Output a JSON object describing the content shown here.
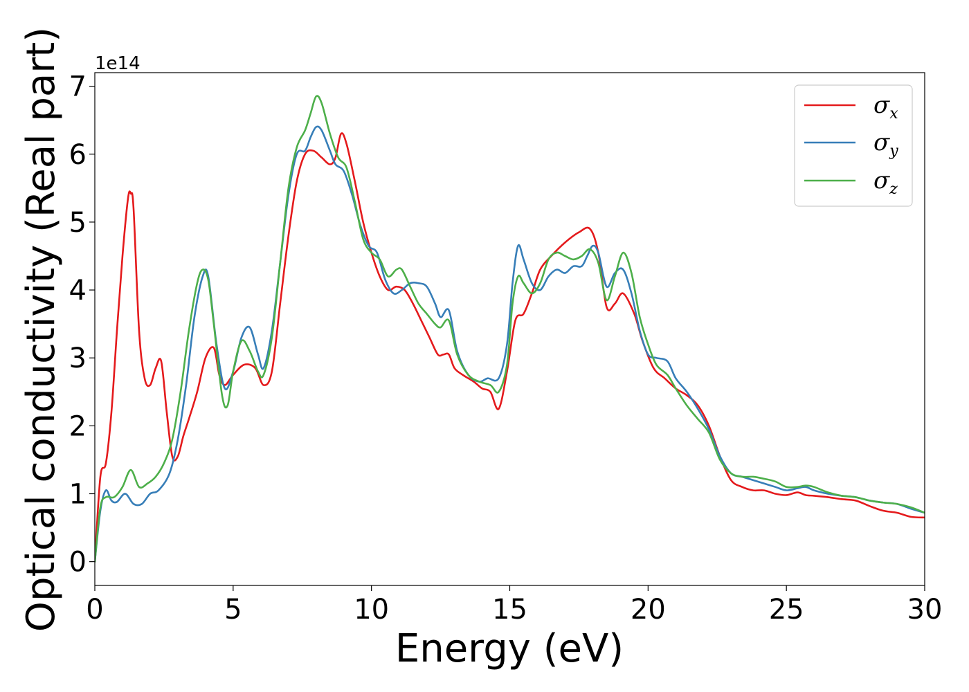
{
  "chart_data": {
    "type": "line",
    "xlabel": "Energy (eV)",
    "ylabel": "Optical conductivity (Real part)",
    "y_offset_label": "1e14",
    "xlim": [
      0,
      30
    ],
    "ylim": [
      -0.35,
      7.2
    ],
    "x_ticks": [
      0,
      5,
      10,
      15,
      20,
      25,
      30
    ],
    "y_ticks": [
      0,
      1,
      2,
      3,
      4,
      5,
      6,
      7
    ],
    "grid": false,
    "legend_position": "top-right",
    "series": [
      {
        "name": "σ",
        "subscript": "x",
        "color": "#e41a1c",
        "x": [
          0,
          0.2,
          0.4,
          0.6,
          0.8,
          1.0,
          1.2,
          1.3,
          1.4,
          1.6,
          1.8,
          2.0,
          2.2,
          2.4,
          2.6,
          2.8,
          3.0,
          3.2,
          3.4,
          3.7,
          4.0,
          4.3,
          4.5,
          4.7,
          5.0,
          5.4,
          5.8,
          6.1,
          6.4,
          6.7,
          7.0,
          7.3,
          7.6,
          7.9,
          8.2,
          8.5,
          8.7,
          8.9,
          9.1,
          9.4,
          9.7,
          10.0,
          10.3,
          10.6,
          10.9,
          11.2,
          11.5,
          11.8,
          12.1,
          12.4,
          12.6,
          12.8,
          13.0,
          13.3,
          13.7,
          14.0,
          14.3,
          14.6,
          14.9,
          15.2,
          15.5,
          15.8,
          16.1,
          16.5,
          17.0,
          17.5,
          17.9,
          18.2,
          18.5,
          18.8,
          19.1,
          19.5,
          19.8,
          20.2,
          20.6,
          21.0,
          21.4,
          21.8,
          22.2,
          22.6,
          23.0,
          23.4,
          23.8,
          24.2,
          24.6,
          25.0,
          25.4,
          25.7,
          26.0,
          26.5,
          27.0,
          27.5,
          28.0,
          28.5,
          29.0,
          29.5,
          30.0
        ],
        "values": [
          0,
          1.25,
          1.45,
          2.2,
          3.4,
          4.5,
          5.35,
          5.42,
          5.2,
          3.4,
          2.7,
          2.6,
          2.85,
          2.95,
          2.2,
          1.55,
          1.55,
          1.85,
          2.1,
          2.5,
          3.0,
          3.15,
          2.75,
          2.6,
          2.75,
          2.9,
          2.85,
          2.6,
          2.8,
          3.8,
          4.8,
          5.6,
          6.0,
          6.05,
          5.95,
          5.85,
          5.95,
          6.3,
          6.15,
          5.6,
          5.0,
          4.55,
          4.2,
          4.0,
          4.05,
          4.0,
          3.8,
          3.55,
          3.3,
          3.05,
          3.05,
          3.05,
          2.85,
          2.75,
          2.65,
          2.55,
          2.5,
          2.25,
          2.8,
          3.55,
          3.65,
          3.95,
          4.3,
          4.5,
          4.7,
          4.85,
          4.9,
          4.55,
          3.75,
          3.8,
          3.95,
          3.65,
          3.25,
          2.85,
          2.7,
          2.55,
          2.45,
          2.3,
          2.0,
          1.55,
          1.2,
          1.1,
          1.05,
          1.05,
          1.0,
          0.98,
          1.02,
          0.98,
          0.97,
          0.95,
          0.92,
          0.9,
          0.82,
          0.75,
          0.72,
          0.66,
          0.65
        ]
      },
      {
        "name": "σ",
        "subscript": "y",
        "color": "#377eb8",
        "x": [
          0,
          0.2,
          0.4,
          0.6,
          0.8,
          1.1,
          1.4,
          1.7,
          2.0,
          2.3,
          2.7,
          3.0,
          3.3,
          3.6,
          3.9,
          4.1,
          4.4,
          4.7,
          5.0,
          5.3,
          5.6,
          5.9,
          6.1,
          6.4,
          6.7,
          7.0,
          7.3,
          7.6,
          7.8,
          8.0,
          8.2,
          8.5,
          8.7,
          9.0,
          9.3,
          9.6,
          9.9,
          10.2,
          10.5,
          10.8,
          11.1,
          11.4,
          11.7,
          12.0,
          12.3,
          12.5,
          12.8,
          13.1,
          13.5,
          13.9,
          14.2,
          14.6,
          14.9,
          15.1,
          15.3,
          15.5,
          15.8,
          16.1,
          16.4,
          16.7,
          17.0,
          17.3,
          17.6,
          17.8,
          18.0,
          18.2,
          18.5,
          18.8,
          19.1,
          19.4,
          19.7,
          20.0,
          20.3,
          20.7,
          21.0,
          21.4,
          21.8,
          22.2,
          22.6,
          23.0,
          23.4,
          23.8,
          24.2,
          24.6,
          25.0,
          25.4,
          25.7,
          26.0,
          26.5,
          27.0,
          27.5,
          28.0,
          28.5,
          29.0,
          29.5,
          30.0
        ],
        "values": [
          0,
          0.75,
          1.05,
          0.9,
          0.88,
          1.0,
          0.85,
          0.85,
          1.0,
          1.05,
          1.3,
          1.8,
          2.6,
          3.6,
          4.2,
          4.2,
          3.2,
          2.55,
          2.8,
          3.3,
          3.45,
          3.05,
          2.85,
          3.4,
          4.4,
          5.4,
          6.0,
          6.05,
          6.25,
          6.4,
          6.35,
          6.05,
          5.85,
          5.75,
          5.4,
          4.95,
          4.65,
          4.55,
          4.15,
          3.95,
          4.0,
          4.1,
          4.1,
          4.05,
          3.8,
          3.6,
          3.7,
          3.1,
          2.75,
          2.65,
          2.7,
          2.7,
          3.2,
          4.1,
          4.65,
          4.45,
          4.1,
          4.0,
          4.2,
          4.3,
          4.25,
          4.35,
          4.35,
          4.5,
          4.65,
          4.55,
          4.05,
          4.25,
          4.3,
          3.95,
          3.4,
          3.05,
          3.0,
          2.95,
          2.7,
          2.5,
          2.25,
          1.95,
          1.55,
          1.3,
          1.25,
          1.2,
          1.15,
          1.1,
          1.05,
          1.08,
          1.1,
          1.05,
          1.0,
          0.97,
          0.95,
          0.9,
          0.87,
          0.85,
          0.78,
          0.72
        ]
      },
      {
        "name": "σ",
        "subscript": "z",
        "color": "#4daf4a",
        "x": [
          0,
          0.2,
          0.4,
          0.7,
          1.0,
          1.3,
          1.6,
          1.9,
          2.2,
          2.5,
          2.8,
          3.1,
          3.4,
          3.7,
          3.9,
          4.1,
          4.3,
          4.6,
          4.8,
          5.0,
          5.3,
          5.6,
          5.9,
          6.1,
          6.4,
          6.7,
          7.0,
          7.3,
          7.6,
          7.8,
          8.0,
          8.2,
          8.5,
          8.8,
          9.1,
          9.4,
          9.7,
          10.0,
          10.3,
          10.6,
          10.9,
          11.1,
          11.4,
          11.7,
          12.0,
          12.3,
          12.5,
          12.8,
          13.1,
          13.5,
          13.9,
          14.3,
          14.6,
          14.9,
          15.1,
          15.3,
          15.5,
          15.8,
          16.1,
          16.4,
          16.7,
          17.0,
          17.3,
          17.6,
          17.9,
          18.2,
          18.5,
          18.8,
          19.1,
          19.4,
          19.7,
          20.0,
          20.3,
          20.7,
          21.0,
          21.4,
          21.8,
          22.2,
          22.6,
          23.0,
          23.4,
          23.8,
          24.2,
          24.6,
          25.0,
          25.4,
          25.7,
          26.0,
          26.5,
          27.0,
          27.5,
          28.0,
          28.5,
          29.0,
          29.5,
          30.0
        ],
        "values": [
          0,
          0.8,
          0.95,
          0.95,
          1.1,
          1.35,
          1.1,
          1.15,
          1.25,
          1.45,
          1.8,
          2.5,
          3.4,
          4.1,
          4.3,
          4.15,
          3.5,
          2.45,
          2.3,
          2.8,
          3.25,
          3.1,
          2.8,
          2.75,
          3.3,
          4.4,
          5.5,
          6.1,
          6.35,
          6.6,
          6.85,
          6.75,
          6.3,
          5.95,
          5.8,
          5.3,
          4.75,
          4.55,
          4.45,
          4.2,
          4.3,
          4.3,
          4.05,
          3.8,
          3.65,
          3.5,
          3.45,
          3.55,
          3.05,
          2.75,
          2.65,
          2.6,
          2.5,
          2.9,
          3.8,
          4.2,
          4.1,
          3.95,
          4.1,
          4.45,
          4.55,
          4.5,
          4.45,
          4.5,
          4.6,
          4.4,
          3.85,
          4.2,
          4.55,
          4.25,
          3.6,
          3.2,
          2.9,
          2.75,
          2.55,
          2.3,
          2.1,
          1.9,
          1.5,
          1.3,
          1.25,
          1.25,
          1.22,
          1.18,
          1.1,
          1.1,
          1.12,
          1.1,
          1.02,
          0.97,
          0.95,
          0.9,
          0.87,
          0.85,
          0.8,
          0.72
        ]
      }
    ]
  }
}
